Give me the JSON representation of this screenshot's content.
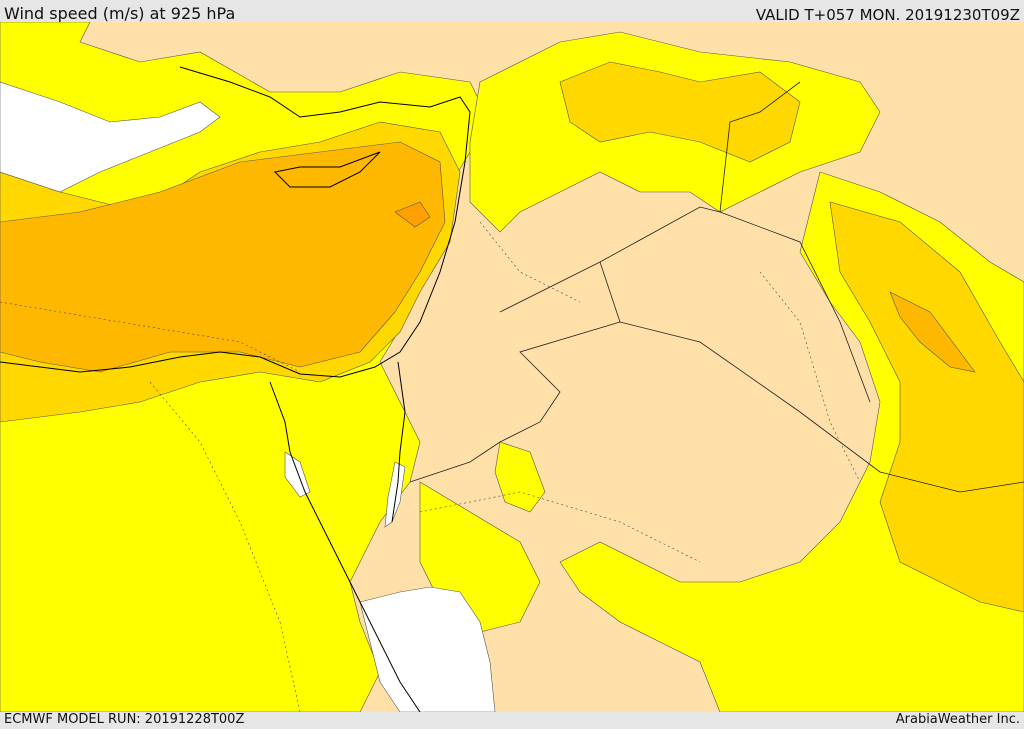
{
  "header": {
    "title": "Wind speed (m/s) at 925 hPa",
    "valid": "VALID T+057 MON. 20191230T09Z"
  },
  "footer": {
    "model_run": "ECMWF MODEL RUN: 20191228T00Z",
    "credit": "ArabiaWeather Inc."
  },
  "colors": {
    "background": "#e6e6e6",
    "wind_low": "#ffe0a8",
    "wind_mid": "#ffff00",
    "wind_high": "#ffd800",
    "wind_higher": "#ffb800",
    "wind_highest": "#ffa000",
    "sea_calm": "#ffffff",
    "coastline": "#000000"
  }
}
